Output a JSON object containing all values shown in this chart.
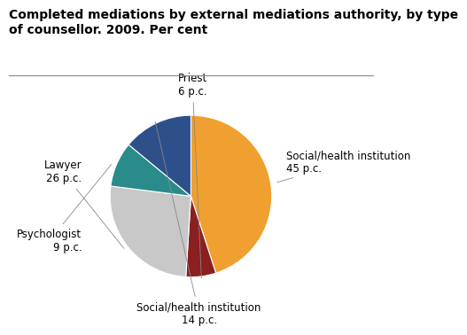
{
  "title": "Completed mediations by external mediations authority, by type\nof counsellor. 2009. Per cent",
  "slices": [
    {
      "label": "Social/health institution\n45 p.c.",
      "value": 45,
      "color": "#F0A030"
    },
    {
      "label": "Priest\n6 p.c.",
      "value": 6,
      "color": "#8B2020"
    },
    {
      "label": "Lawyer\n26 p.c.",
      "value": 26,
      "color": "#C8C8C8"
    },
    {
      "label": "Psychologist\n9 p.c.",
      "value": 9,
      "color": "#2A8B8B"
    },
    {
      "label": "Social/health institution\n14 p.c.",
      "value": 14,
      "color": "#2E508A"
    }
  ],
  "start_angle": 90,
  "background_color": "#ffffff",
  "title_fontsize": 10,
  "label_fontsize": 8.5
}
